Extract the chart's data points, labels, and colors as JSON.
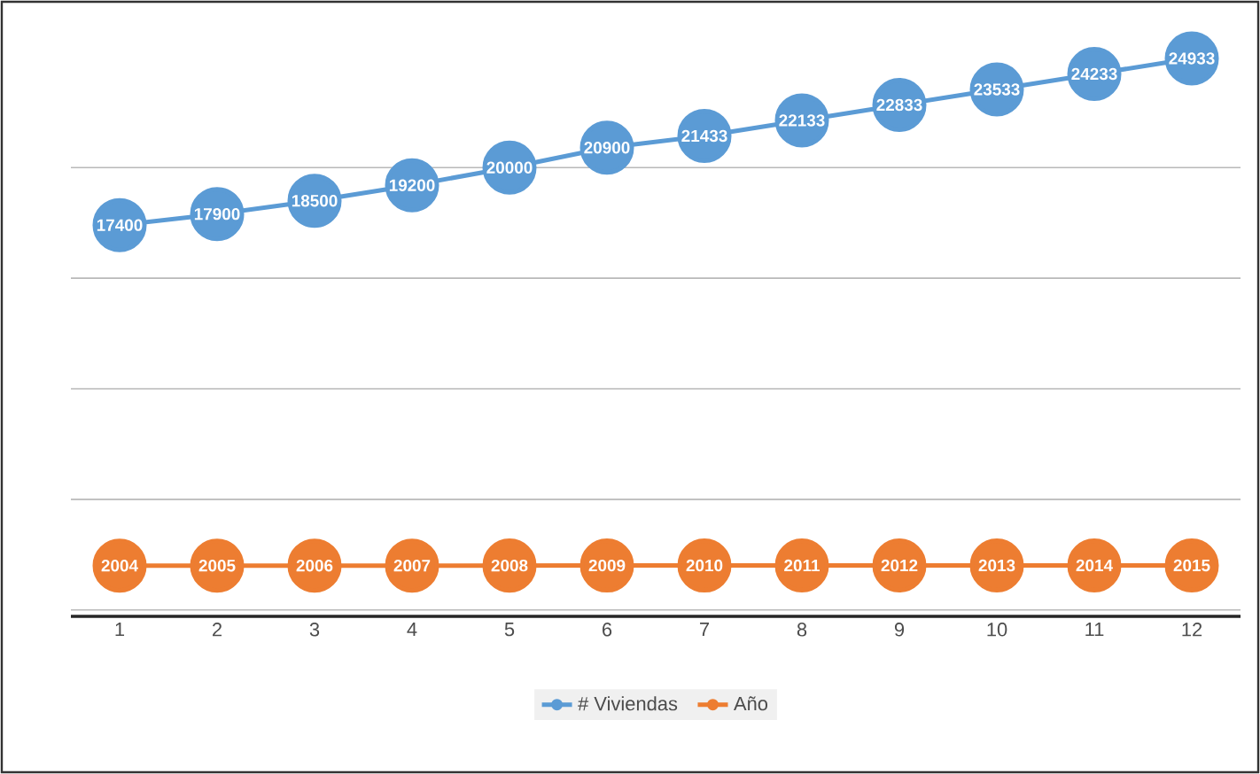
{
  "chart_data": {
    "type": "line",
    "categories": [
      "1",
      "2",
      "3",
      "4",
      "5",
      "6",
      "7",
      "8",
      "9",
      "10",
      "11",
      "12"
    ],
    "series": [
      {
        "name": "# Viviendas",
        "color": "#5b9bd5",
        "values": [
          17400,
          17900,
          18500,
          19200,
          20000,
          20900,
          21433,
          22133,
          22833,
          23533,
          24233,
          24933
        ]
      },
      {
        "name": "Año",
        "color": "#ed7d31",
        "values": [
          2004,
          2005,
          2006,
          2007,
          2008,
          2009,
          2010,
          2011,
          2012,
          2013,
          2014,
          2015
        ]
      }
    ],
    "grid": "y",
    "tick_labels": "x",
    "legend": "bottom",
    "marker": "circle",
    "line_style": "solid",
    "data_labels": true
  }
}
